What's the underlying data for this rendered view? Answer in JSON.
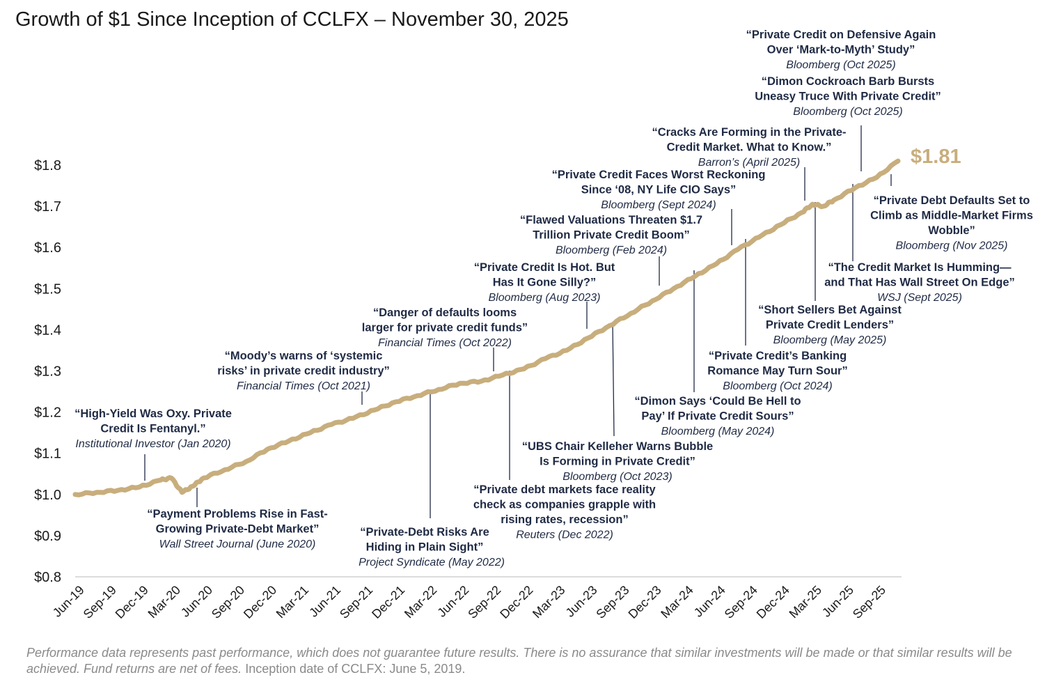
{
  "title": "Growth of $1 Since Inception of CCLFX – November 30, 2025",
  "footer": {
    "disclaimer": "Performance data represents past performance, which does not guarantee future results. There is no assurance that similar investments will be made or that similar results will be achieved. Fund returns are net of fees.",
    "inception": "Inception date of CCLFX: June 5, 2019."
  },
  "colors": {
    "line": "#c8ae7d",
    "annotation_text": "#1f2a44",
    "leader_line": "#1f2a44",
    "end_value": "#c8ae7d",
    "axis": "#d0d0d0"
  },
  "chart_data": {
    "type": "line",
    "title": "Growth of $1 Since Inception of CCLFX – November 30, 2025",
    "xlabel": "",
    "ylabel": "",
    "ylim": [
      0.8,
      1.8
    ],
    "y_ticks": [
      "$0.8",
      "$0.9",
      "$1.0",
      "$1.1",
      "$1.2",
      "$1.3",
      "$1.4",
      "$1.5",
      "$1.6",
      "$1.7",
      "$1.8"
    ],
    "x_ticks": [
      "Jun-19",
      "Sep-19",
      "Dec-19",
      "Mar-20",
      "Jun-20",
      "Sep-20",
      "Dec-20",
      "Mar-21",
      "Jun-21",
      "Sep-21",
      "Dec-21",
      "Mar-22",
      "Jun-22",
      "Sep-22",
      "Dec-22",
      "Mar-23",
      "Jun-23",
      "Sep-23",
      "Dec-23",
      "Mar-24",
      "Jun-24",
      "Sep-24",
      "Dec-24",
      "Mar-25",
      "Jun-25",
      "Sep-25"
    ],
    "grid": false,
    "end_value_label": "$1.81",
    "series": [
      {
        "points": [
          [
            "2019-06",
            1.0
          ],
          [
            "2019-08",
            1.005
          ],
          [
            "2019-10",
            1.01
          ],
          [
            "2019-12",
            1.018
          ],
          [
            "2020-02",
            1.035
          ],
          [
            "2020-03",
            1.04
          ],
          [
            "2020-04",
            1.005
          ],
          [
            "2020-05",
            1.02
          ],
          [
            "2020-06",
            1.04
          ],
          [
            "2020-08",
            1.06
          ],
          [
            "2020-10",
            1.08
          ],
          [
            "2020-12",
            1.11
          ],
          [
            "2021-02",
            1.13
          ],
          [
            "2021-04",
            1.15
          ],
          [
            "2021-06",
            1.17
          ],
          [
            "2021-08",
            1.185
          ],
          [
            "2021-10",
            1.205
          ],
          [
            "2021-12",
            1.225
          ],
          [
            "2022-02",
            1.24
          ],
          [
            "2022-04",
            1.255
          ],
          [
            "2022-06",
            1.27
          ],
          [
            "2022-08",
            1.275
          ],
          [
            "2022-10",
            1.29
          ],
          [
            "2022-12",
            1.305
          ],
          [
            "2023-02",
            1.33
          ],
          [
            "2023-04",
            1.35
          ],
          [
            "2023-06",
            1.38
          ],
          [
            "2023-08",
            1.41
          ],
          [
            "2023-10",
            1.44
          ],
          [
            "2023-12",
            1.47
          ],
          [
            "2024-02",
            1.5
          ],
          [
            "2024-04",
            1.53
          ],
          [
            "2024-06",
            1.56
          ],
          [
            "2024-08",
            1.595
          ],
          [
            "2024-10",
            1.625
          ],
          [
            "2024-12",
            1.655
          ],
          [
            "2025-02",
            1.685
          ],
          [
            "2025-03",
            1.705
          ],
          [
            "2025-04",
            1.7
          ],
          [
            "2025-05",
            1.715
          ],
          [
            "2025-07",
            1.745
          ],
          [
            "2025-09",
            1.77
          ],
          [
            "2025-11",
            1.81
          ]
        ]
      }
    ],
    "annotations": [
      {
        "lines": [
          "“Private Credit on Defensive Again",
          "Over ‘Mark-to-Myth’ Study”"
        ],
        "source": "Bloomberg (Oct 2025)"
      },
      {
        "lines": [
          "“Dimon Cockroach Barb Bursts",
          "Uneasy Truce With Private Credit”"
        ],
        "source": "Bloomberg (Oct 2025)"
      },
      {
        "lines": [
          "“Cracks Are Forming in the Private-",
          "Credit Market. What to Know.”"
        ],
        "source": "Barron’s (April 2025)"
      },
      {
        "lines": [
          "“Private Credit Faces Worst Reckoning",
          "Since ‘08, NY Life CIO Says”"
        ],
        "source": "Bloomberg (Sept 2024)"
      },
      {
        "lines": [
          "“Flawed Valuations Threaten $1.7",
          "Trillion Private Credit Boom”"
        ],
        "source": "Bloomberg (Feb 2024)"
      },
      {
        "lines": [
          "“Private Credit Is Hot. But",
          "Has It Gone Silly?”"
        ],
        "source": "Bloomberg (Aug 2023)"
      },
      {
        "lines": [
          "“Danger of defaults looms",
          "larger for private credit funds”"
        ],
        "source": "Financial Times (Oct 2022)"
      },
      {
        "lines": [
          "“Moody’s warns of ‘systemic",
          "risks’ in private credit industry”"
        ],
        "source": "Financial Times (Oct 2021)"
      },
      {
        "lines": [
          "“High-Yield Was Oxy. Private",
          "Credit Is Fentanyl.”"
        ],
        "source": "Institutional Investor (Jan 2020)"
      },
      {
        "lines": [
          "“Payment Problems Rise in Fast-",
          "Growing Private-Debt Market”"
        ],
        "source": "Wall Street Journal (June 2020)"
      },
      {
        "lines": [
          "“Private-Debt Risks Are",
          "Hiding in Plain Sight”"
        ],
        "source": "Project Syndicate (May 2022)"
      },
      {
        "lines": [
          "“Private debt markets face reality",
          "check as companies grapple with",
          "rising rates, recession”"
        ],
        "source": "Reuters (Dec 2022)"
      },
      {
        "lines": [
          "“UBS Chair Kelleher Warns Bubble",
          "Is Forming in Private Credit”"
        ],
        "source": "Bloomberg (Oct 2023)"
      },
      {
        "lines": [
          "“Dimon Says ‘Could Be Hell to",
          "Pay’ If Private Credit Sours”"
        ],
        "source": "Bloomberg (May 2024)"
      },
      {
        "lines": [
          "“Private Credit’s Banking",
          "Romance May Turn Sour”"
        ],
        "source": "Bloomberg (Oct 2024)"
      },
      {
        "lines": [
          "“Short Sellers Bet Against",
          "Private Credit Lenders”"
        ],
        "source": "Bloomberg (May 2025)"
      },
      {
        "lines": [
          "“The Credit Market Is Humming—",
          "and That Has Wall Street On Edge”"
        ],
        "source": "WSJ (Sept 2025)"
      },
      {
        "lines": [
          "“Private Debt Defaults Set to",
          "Climb as Middle-Market Firms",
          "Wobble”"
        ],
        "source": "Bloomberg (Nov 2025)"
      }
    ]
  }
}
